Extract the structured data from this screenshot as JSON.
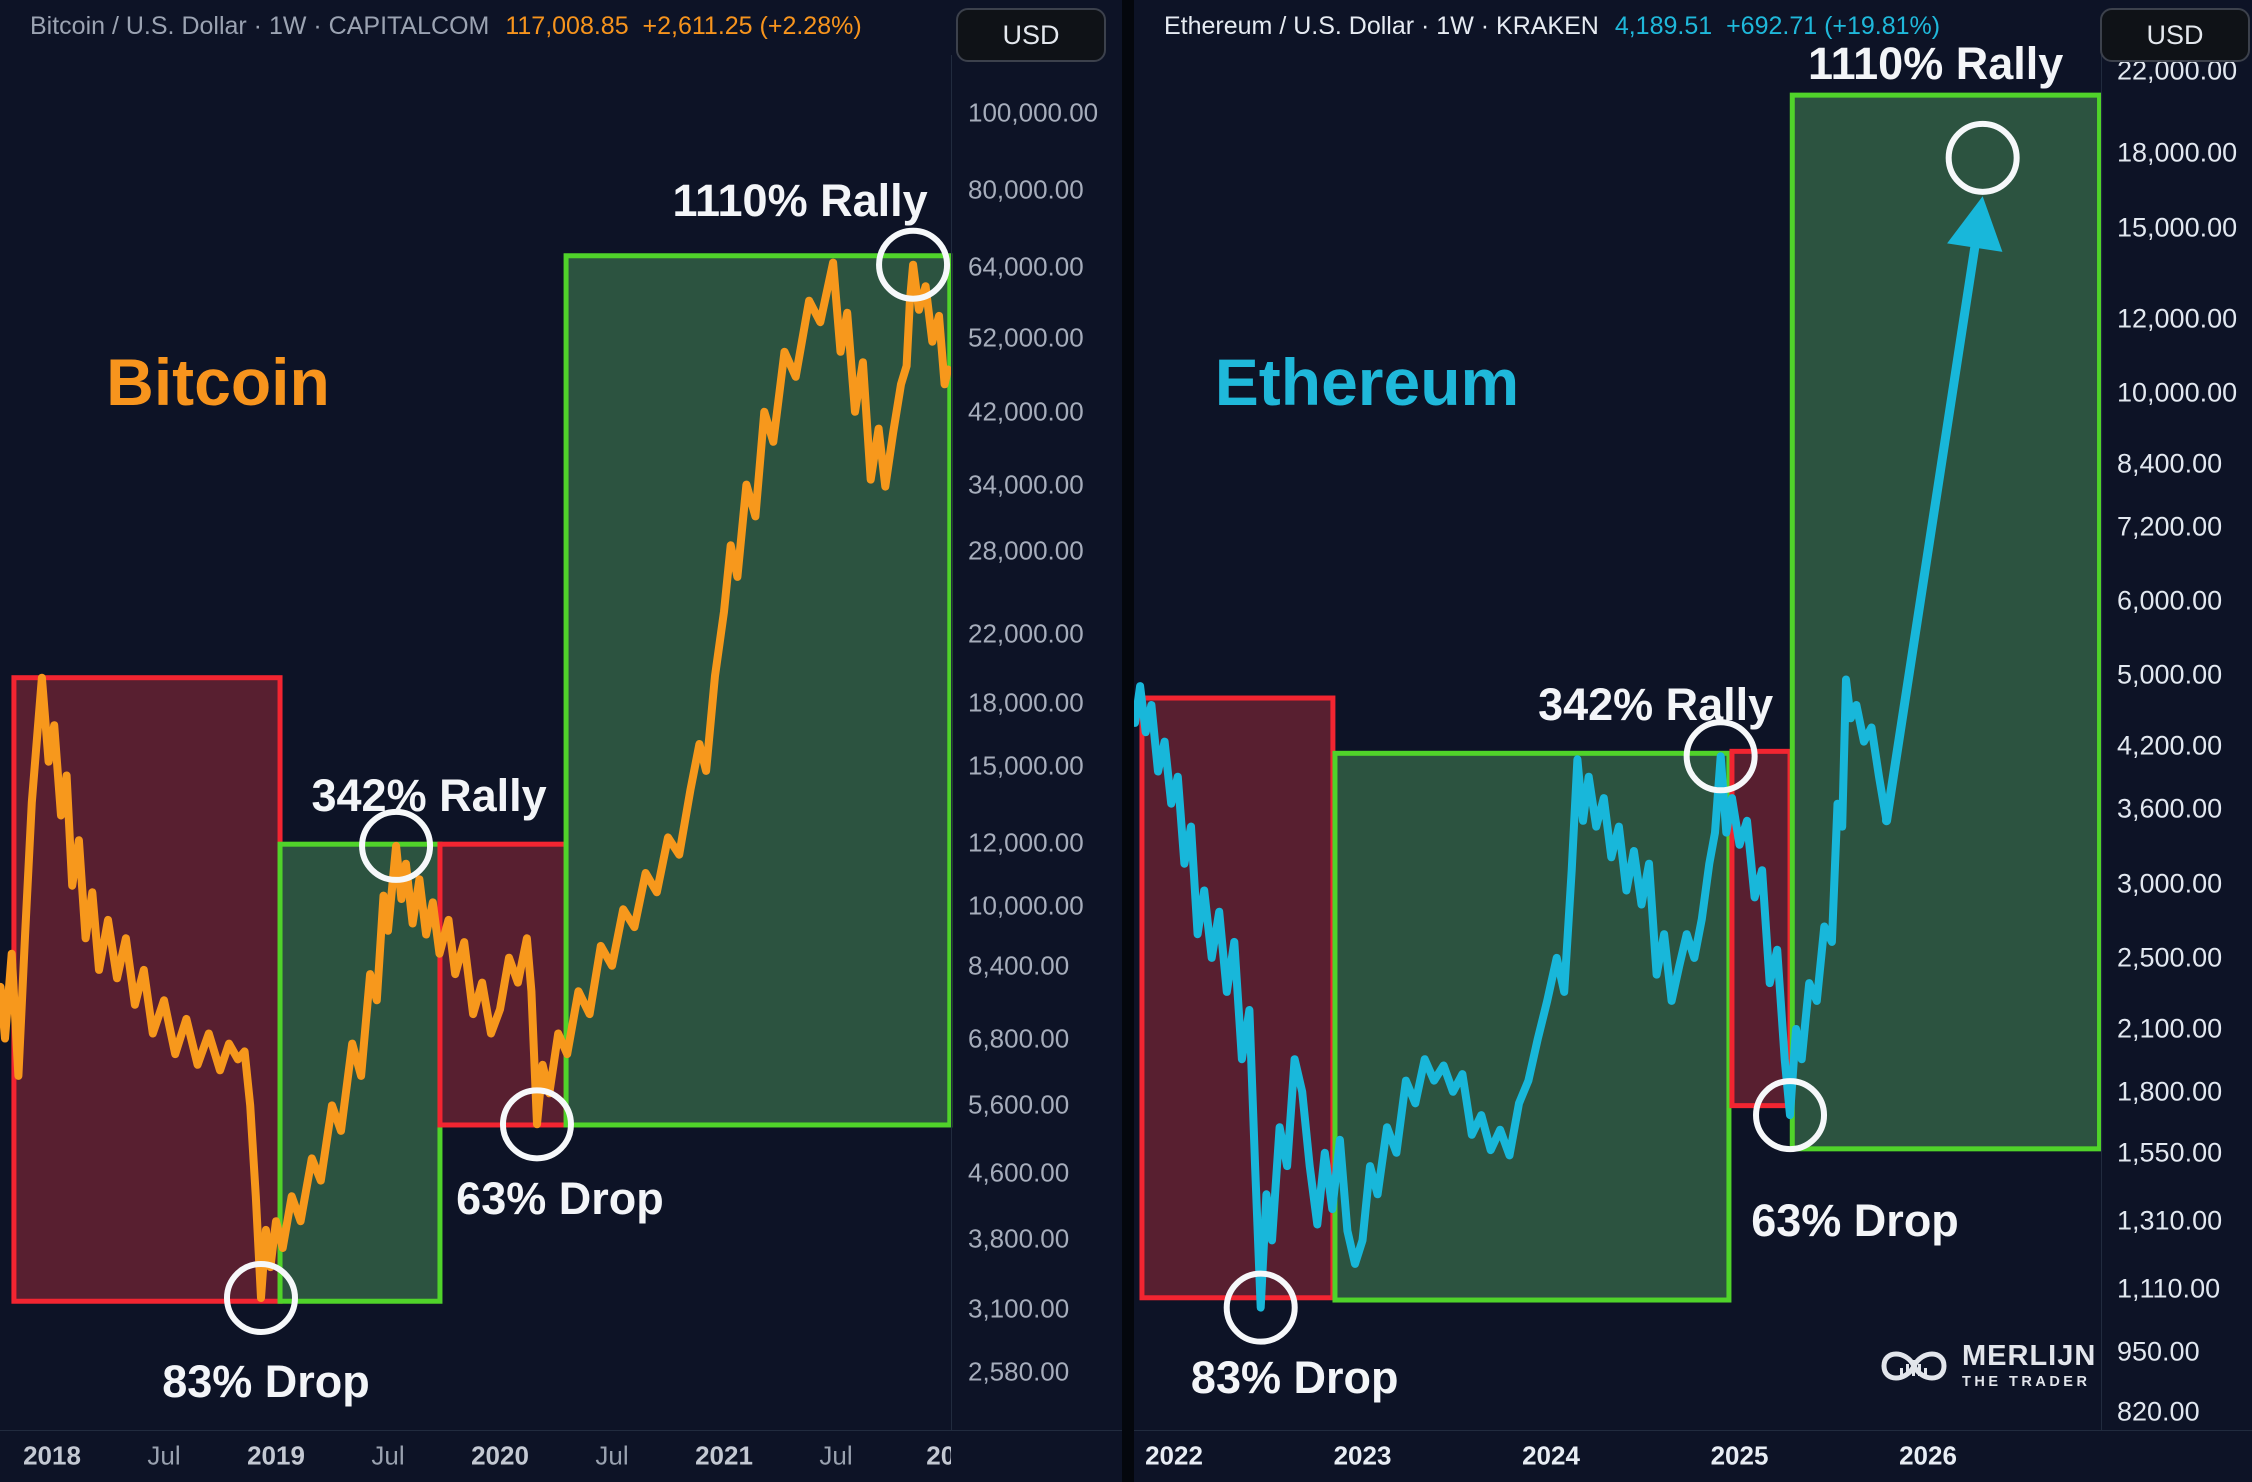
{
  "left_panel": {
    "header": {
      "symbol": "Bitcoin / U.S. Dollar · 1W · CAPITALCOM",
      "price": "117,008.85",
      "change": "+2,611.25 (+2.28%)"
    },
    "currency_button": "USD",
    "watermark": "Bitcoin"
  },
  "right_panel": {
    "header": {
      "symbol": "Ethereum / U.S. Dollar · 1W · KRAKEN",
      "price": "4,189.51",
      "change": "+692.71 (+19.81%)"
    },
    "currency_button": "USD",
    "watermark": "Ethereum",
    "logo": {
      "line1": "MERLIJN",
      "line2": "THE TRADER"
    }
  },
  "chart_data": [
    {
      "panel": "bitcoin",
      "type": "line",
      "title": "Bitcoin / U.S. Dollar",
      "timeframe": "1W",
      "exchange": "CAPITALCOM",
      "unit": "USD",
      "color": "#f7981c",
      "scale": "log",
      "y_ticks": [
        "100,000.00",
        "80,000.00",
        "64,000.00",
        "52,000.00",
        "42,000.00",
        "34,000.00",
        "28,000.00",
        "22,000.00",
        "18,000.00",
        "15,000.00",
        "12,000.00",
        "10,000.00",
        "8,400.00",
        "6,800.00",
        "5,600.00",
        "4,600.00",
        "3,800.00",
        "3,100.00",
        "2,580.00"
      ],
      "x_ticks": [
        {
          "t": 2018.0,
          "label": "2018",
          "major": true
        },
        {
          "t": 2018.5,
          "label": "Jul",
          "major": false
        },
        {
          "t": 2019.0,
          "label": "2019",
          "major": true
        },
        {
          "t": 2019.5,
          "label": "Jul",
          "major": false
        },
        {
          "t": 2020.0,
          "label": "2020",
          "major": true
        },
        {
          "t": 2020.5,
          "label": "Jul",
          "major": false
        },
        {
          "t": 2021.0,
          "label": "2021",
          "major": true
        },
        {
          "t": 2021.5,
          "label": "Jul",
          "major": false
        },
        {
          "t": 2022.0,
          "label": "202",
          "major": true
        }
      ],
      "series": [
        [
          2017.77,
          7900
        ],
        [
          2017.79,
          6800
        ],
        [
          2017.82,
          8700
        ],
        [
          2017.85,
          6100
        ],
        [
          2017.88,
          9200
        ],
        [
          2017.91,
          13500
        ],
        [
          2017.955,
          19400
        ],
        [
          2017.985,
          15200
        ],
        [
          2018.01,
          16900
        ],
        [
          2018.04,
          13000
        ],
        [
          2018.065,
          14600
        ],
        [
          2018.09,
          10600
        ],
        [
          2018.12,
          12100
        ],
        [
          2018.15,
          9100
        ],
        [
          2018.18,
          10400
        ],
        [
          2018.21,
          8300
        ],
        [
          2018.25,
          9600
        ],
        [
          2018.29,
          8100
        ],
        [
          2018.33,
          9100
        ],
        [
          2018.37,
          7500
        ],
        [
          2018.41,
          8300
        ],
        [
          2018.45,
          6900
        ],
        [
          2018.5,
          7600
        ],
        [
          2018.55,
          6500
        ],
        [
          2018.6,
          7200
        ],
        [
          2018.65,
          6300
        ],
        [
          2018.7,
          6900
        ],
        [
          2018.75,
          6200
        ],
        [
          2018.79,
          6700
        ],
        [
          2018.83,
          6400
        ],
        [
          2018.86,
          6550
        ],
        [
          2018.885,
          5600
        ],
        [
          2018.91,
          4300
        ],
        [
          2018.933,
          3200
        ],
        [
          2018.955,
          3900
        ],
        [
          2018.975,
          3500
        ],
        [
          2019.0,
          4000
        ],
        [
          2019.03,
          3700
        ],
        [
          2019.07,
          4300
        ],
        [
          2019.11,
          4000
        ],
        [
          2019.16,
          4800
        ],
        [
          2019.2,
          4500
        ],
        [
          2019.25,
          5600
        ],
        [
          2019.29,
          5200
        ],
        [
          2019.34,
          6700
        ],
        [
          2019.38,
          6100
        ],
        [
          2019.42,
          8200
        ],
        [
          2019.45,
          7600
        ],
        [
          2019.48,
          10300
        ],
        [
          2019.5,
          9300
        ],
        [
          2019.536,
          11900
        ],
        [
          2019.56,
          10200
        ],
        [
          2019.58,
          11300
        ],
        [
          2019.61,
          9500
        ],
        [
          2019.64,
          10800
        ],
        [
          2019.67,
          9200
        ],
        [
          2019.7,
          10100
        ],
        [
          2019.73,
          8700
        ],
        [
          2019.77,
          9600
        ],
        [
          2019.8,
          8200
        ],
        [
          2019.84,
          9000
        ],
        [
          2019.88,
          7300
        ],
        [
          2019.92,
          8000
        ],
        [
          2019.96,
          6900
        ],
        [
          2020.0,
          7400
        ],
        [
          2020.04,
          8600
        ],
        [
          2020.08,
          8000
        ],
        [
          2020.12,
          9100
        ],
        [
          2020.14,
          7800
        ],
        [
          2020.165,
          5300
        ],
        [
          2020.19,
          6300
        ],
        [
          2020.22,
          5800
        ],
        [
          2020.26,
          6900
        ],
        [
          2020.3,
          6500
        ],
        [
          2020.35,
          7800
        ],
        [
          2020.4,
          7300
        ],
        [
          2020.45,
          8900
        ],
        [
          2020.5,
          8400
        ],
        [
          2020.55,
          9900
        ],
        [
          2020.6,
          9400
        ],
        [
          2020.65,
          11000
        ],
        [
          2020.7,
          10400
        ],
        [
          2020.75,
          12200
        ],
        [
          2020.8,
          11600
        ],
        [
          2020.85,
          14000
        ],
        [
          2020.89,
          16000
        ],
        [
          2020.92,
          14800
        ],
        [
          2020.96,
          19500
        ],
        [
          2021.0,
          23500
        ],
        [
          2021.03,
          28500
        ],
        [
          2021.06,
          26000
        ],
        [
          2021.1,
          34000
        ],
        [
          2021.14,
          31000
        ],
        [
          2021.18,
          42000
        ],
        [
          2021.22,
          38500
        ],
        [
          2021.27,
          50000
        ],
        [
          2021.32,
          46500
        ],
        [
          2021.38,
          58000
        ],
        [
          2021.43,
          54500
        ],
        [
          2021.487,
          64800
        ],
        [
          2021.52,
          50000
        ],
        [
          2021.55,
          56000
        ],
        [
          2021.585,
          42000
        ],
        [
          2021.62,
          48500
        ],
        [
          2021.655,
          34500
        ],
        [
          2021.69,
          40000
        ],
        [
          2021.72,
          33800
        ],
        [
          2021.755,
          39500
        ],
        [
          2021.79,
          45500
        ],
        [
          2021.815,
          48000
        ],
        [
          2021.83,
          58000
        ],
        [
          2021.844,
          64400
        ],
        [
          2021.87,
          56500
        ],
        [
          2021.9,
          60500
        ],
        [
          2021.93,
          51500
        ],
        [
          2021.96,
          55500
        ],
        [
          2021.985,
          45500
        ],
        [
          2022.0,
          47500
        ]
      ],
      "zones": [
        {
          "kind": "drop",
          "t1": 2017.83,
          "t2": 2019.018,
          "price_top": 19400,
          "price_bottom": 3170
        },
        {
          "kind": "rally",
          "t1": 2019.018,
          "t2": 2019.732,
          "price_top": 11960,
          "price_bottom": 3170
        },
        {
          "kind": "drop",
          "t1": 2019.732,
          "t2": 2020.295,
          "price_top": 11960,
          "price_bottom": 5290
        },
        {
          "kind": "rally",
          "t1": 2020.295,
          "t2": 2022.008,
          "price_top": 66100,
          "price_bottom": 5290
        }
      ],
      "events": [
        {
          "label": "83% Drop",
          "t": 2018.933,
          "price": 3200
        },
        {
          "label": "342% Rally",
          "t": 2019.536,
          "price": 11900
        },
        {
          "label": "63% Drop",
          "t": 2020.165,
          "price": 5300
        },
        {
          "label": "1110% Rally",
          "t": 2021.844,
          "price": 64400
        }
      ]
    },
    {
      "panel": "ethereum",
      "type": "line",
      "title": "Ethereum / U.S. Dollar",
      "timeframe": "1W",
      "exchange": "KRAKEN",
      "unit": "USD",
      "color": "#18b7da",
      "scale": "log",
      "y_ticks": [
        "22,000.00",
        "18,000.00",
        "15,000.00",
        "12,000.00",
        "10,000.00",
        "8,400.00",
        "7,200.00",
        "6,000.00",
        "5,000.00",
        "4,200.00",
        "3,600.00",
        "3,000.00",
        "2,500.00",
        "2,100.00",
        "1,800.00",
        "1,550.00",
        "1,310.00",
        "1,110.00",
        "950.00",
        "820.00"
      ],
      "x_ticks": [
        {
          "t": 2022.0,
          "label": "2022",
          "major": true
        },
        {
          "t": 2023.0,
          "label": "2023",
          "major": true
        },
        {
          "t": 2024.0,
          "label": "2024",
          "major": true
        },
        {
          "t": 2025.0,
          "label": "2025",
          "major": true
        },
        {
          "t": 2026.0,
          "label": "2026",
          "major": true
        }
      ],
      "series": [
        [
          2021.793,
          4450
        ],
        [
          2021.82,
          4870
        ],
        [
          2021.85,
          4350
        ],
        [
          2021.88,
          4650
        ],
        [
          2021.915,
          3950
        ],
        [
          2021.95,
          4250
        ],
        [
          2021.985,
          3650
        ],
        [
          2022.02,
          3900
        ],
        [
          2022.055,
          3150
        ],
        [
          2022.09,
          3450
        ],
        [
          2022.125,
          2650
        ],
        [
          2022.16,
          2950
        ],
        [
          2022.2,
          2500
        ],
        [
          2022.24,
          2800
        ],
        [
          2022.28,
          2300
        ],
        [
          2022.32,
          2600
        ],
        [
          2022.36,
          1950
        ],
        [
          2022.4,
          2200
        ],
        [
          2022.43,
          1500
        ],
        [
          2022.46,
          1060
        ],
        [
          2022.49,
          1400
        ],
        [
          2022.52,
          1250
        ],
        [
          2022.56,
          1650
        ],
        [
          2022.6,
          1500
        ],
        [
          2022.64,
          1950
        ],
        [
          2022.68,
          1800
        ],
        [
          2022.72,
          1500
        ],
        [
          2022.76,
          1300
        ],
        [
          2022.8,
          1550
        ],
        [
          2022.84,
          1350
        ],
        [
          2022.88,
          1600
        ],
        [
          2022.92,
          1280
        ],
        [
          2022.96,
          1180
        ],
        [
          2023.0,
          1250
        ],
        [
          2023.04,
          1500
        ],
        [
          2023.08,
          1400
        ],
        [
          2023.13,
          1650
        ],
        [
          2023.18,
          1550
        ],
        [
          2023.23,
          1850
        ],
        [
          2023.28,
          1750
        ],
        [
          2023.33,
          1950
        ],
        [
          2023.38,
          1850
        ],
        [
          2023.43,
          1920
        ],
        [
          2023.48,
          1800
        ],
        [
          2023.53,
          1880
        ],
        [
          2023.58,
          1620
        ],
        [
          2023.63,
          1700
        ],
        [
          2023.68,
          1560
        ],
        [
          2023.73,
          1640
        ],
        [
          2023.78,
          1540
        ],
        [
          2023.83,
          1750
        ],
        [
          2023.88,
          1850
        ],
        [
          2023.93,
          2050
        ],
        [
          2023.98,
          2250
        ],
        [
          2024.03,
          2500
        ],
        [
          2024.07,
          2300
        ],
        [
          2024.11,
          3100
        ],
        [
          2024.14,
          4070
        ],
        [
          2024.17,
          3500
        ],
        [
          2024.2,
          3900
        ],
        [
          2024.24,
          3450
        ],
        [
          2024.28,
          3700
        ],
        [
          2024.32,
          3200
        ],
        [
          2024.36,
          3450
        ],
        [
          2024.4,
          2950
        ],
        [
          2024.44,
          3250
        ],
        [
          2024.48,
          2850
        ],
        [
          2024.52,
          3150
        ],
        [
          2024.56,
          2400
        ],
        [
          2024.6,
          2650
        ],
        [
          2024.64,
          2250
        ],
        [
          2024.68,
          2450
        ],
        [
          2024.72,
          2650
        ],
        [
          2024.76,
          2500
        ],
        [
          2024.8,
          2750
        ],
        [
          2024.84,
          3150
        ],
        [
          2024.87,
          3400
        ],
        [
          2024.9,
          4100
        ],
        [
          2024.93,
          3400
        ],
        [
          2024.96,
          3700
        ],
        [
          2025.0,
          3300
        ],
        [
          2025.04,
          3500
        ],
        [
          2025.08,
          2900
        ],
        [
          2025.12,
          3100
        ],
        [
          2025.16,
          2350
        ],
        [
          2025.2,
          2550
        ],
        [
          2025.24,
          1950
        ],
        [
          2025.268,
          1700
        ],
        [
          2025.3,
          2100
        ],
        [
          2025.33,
          1950
        ],
        [
          2025.37,
          2350
        ],
        [
          2025.41,
          2250
        ],
        [
          2025.45,
          2700
        ],
        [
          2025.49,
          2600
        ],
        [
          2025.52,
          3650
        ],
        [
          2025.545,
          3450
        ],
        [
          2025.565,
          4950
        ],
        [
          2025.59,
          4500
        ],
        [
          2025.62,
          4650
        ],
        [
          2025.66,
          4250
        ],
        [
          2025.7,
          4400
        ],
        [
          2025.74,
          3900
        ],
        [
          2025.78,
          3500
        ]
      ],
      "zones": [
        {
          "kind": "drop",
          "t1": 2021.83,
          "t2": 2022.843,
          "price_top": 4730,
          "price_bottom": 1086
        },
        {
          "kind": "rally",
          "t1": 2022.854,
          "t2": 2024.944,
          "price_top": 4130,
          "price_bottom": 1080
        },
        {
          "kind": "drop",
          "t1": 2024.96,
          "t2": 2025.268,
          "price_top": 4150,
          "price_bottom": 1740
        },
        {
          "kind": "rally",
          "t1": 2025.28,
          "t2": 2026.91,
          "price_top": 20760,
          "price_bottom": 1565
        }
      ],
      "events": [
        {
          "label": "83% Drop",
          "t": 2022.46,
          "price": 1060
        },
        {
          "label": "342% Rally",
          "t": 2024.9,
          "price": 4100
        },
        {
          "label": "63% Drop",
          "t": 2025.268,
          "price": 1700
        },
        {
          "label": "1110% Rally",
          "t": 2026.29,
          "price": 17800
        }
      ],
      "projection": {
        "from_t": 2025.78,
        "from_price": 3500,
        "to_t": 2026.29,
        "to_price": 16200
      }
    }
  ]
}
